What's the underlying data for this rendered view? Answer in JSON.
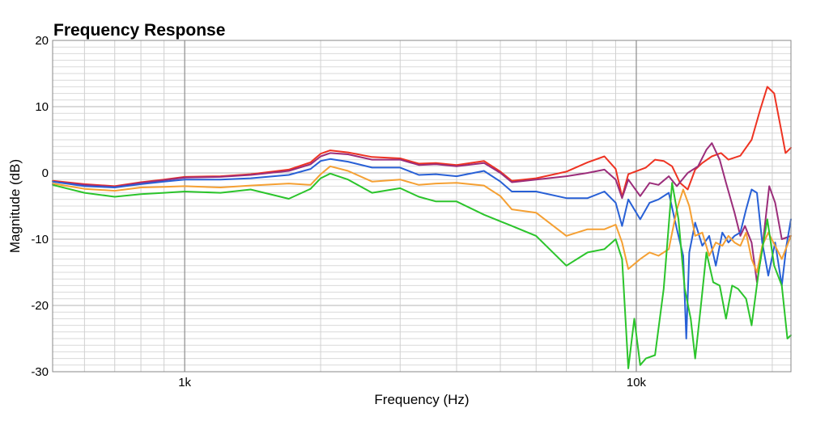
{
  "chart_data": {
    "type": "line",
    "title": "Frequency Response",
    "xlabel": "Frequency (Hz)",
    "ylabel": "Magnitude (dB)",
    "x_scale": "log",
    "xlim": [
      510,
      22000
    ],
    "ylim": [
      -30,
      20
    ],
    "grid": true,
    "x_tick_labels": [
      {
        "value": 1000,
        "label": "1k"
      },
      {
        "value": 10000,
        "label": "10k"
      }
    ],
    "y_tick_labels": [
      {
        "value": 20,
        "label": "20"
      },
      {
        "value": 10,
        "label": "10"
      },
      {
        "value": 0,
        "label": "0"
      },
      {
        "value": -10,
        "label": "-10"
      },
      {
        "value": -20,
        "label": "-20"
      },
      {
        "value": -30,
        "label": "-30"
      }
    ],
    "series": [
      {
        "color": "#ee3322",
        "points": [
          [
            510,
            -1.2
          ],
          [
            600,
            -1.7
          ],
          [
            700,
            -2.0
          ],
          [
            800,
            -1.4
          ],
          [
            900,
            -1.0
          ],
          [
            1000,
            -0.6
          ],
          [
            1200,
            -0.5
          ],
          [
            1400,
            -0.2
          ],
          [
            1700,
            0.5
          ],
          [
            1900,
            1.6
          ],
          [
            2000,
            2.9
          ],
          [
            2100,
            3.4
          ],
          [
            2300,
            3.1
          ],
          [
            2600,
            2.4
          ],
          [
            3000,
            2.2
          ],
          [
            3300,
            1.4
          ],
          [
            3600,
            1.5
          ],
          [
            4000,
            1.2
          ],
          [
            4600,
            1.8
          ],
          [
            5000,
            0.2
          ],
          [
            5300,
            -1.2
          ],
          [
            6000,
            -0.8
          ],
          [
            7000,
            0.2
          ],
          [
            7800,
            1.6
          ],
          [
            8500,
            2.5
          ],
          [
            9000,
            0.6
          ],
          [
            9300,
            -3.6
          ],
          [
            9600,
            -0.2
          ],
          [
            10500,
            0.8
          ],
          [
            11000,
            2.0
          ],
          [
            11500,
            1.8
          ],
          [
            12000,
            1.0
          ],
          [
            12500,
            -1.5
          ],
          [
            13000,
            -2.5
          ],
          [
            13500,
            0.5
          ],
          [
            14000,
            1.5
          ],
          [
            14700,
            2.5
          ],
          [
            15400,
            3.0
          ],
          [
            16000,
            2.0
          ],
          [
            17000,
            2.6
          ],
          [
            18000,
            5.0
          ],
          [
            18800,
            9.5
          ],
          [
            19500,
            13.0
          ],
          [
            20200,
            12.0
          ],
          [
            21000,
            6.0
          ],
          [
            21400,
            3.0
          ],
          [
            22000,
            3.8
          ]
        ]
      },
      {
        "color": "#9b2d7a",
        "points": [
          [
            510,
            -1.3
          ],
          [
            600,
            -1.8
          ],
          [
            700,
            -2.1
          ],
          [
            800,
            -1.5
          ],
          [
            900,
            -1.1
          ],
          [
            1000,
            -0.7
          ],
          [
            1200,
            -0.6
          ],
          [
            1400,
            -0.3
          ],
          [
            1700,
            0.3
          ],
          [
            1900,
            1.3
          ],
          [
            2000,
            2.5
          ],
          [
            2100,
            3.0
          ],
          [
            2300,
            2.8
          ],
          [
            2600,
            2.0
          ],
          [
            3000,
            2.0
          ],
          [
            3300,
            1.2
          ],
          [
            3600,
            1.3
          ],
          [
            4000,
            1.0
          ],
          [
            4600,
            1.5
          ],
          [
            5000,
            0.0
          ],
          [
            5300,
            -1.4
          ],
          [
            6000,
            -1.0
          ],
          [
            7000,
            -0.5
          ],
          [
            7800,
            0.0
          ],
          [
            8500,
            0.5
          ],
          [
            9000,
            -1.0
          ],
          [
            9300,
            -3.8
          ],
          [
            9600,
            -1.0
          ],
          [
            10200,
            -3.5
          ],
          [
            10700,
            -1.5
          ],
          [
            11200,
            -1.8
          ],
          [
            11800,
            -0.5
          ],
          [
            12300,
            -2.0
          ],
          [
            13000,
            0.0
          ],
          [
            13700,
            1.0
          ],
          [
            14300,
            3.5
          ],
          [
            14700,
            4.5
          ],
          [
            15300,
            2.0
          ],
          [
            15800,
            -1.5
          ],
          [
            16500,
            -6.0
          ],
          [
            17000,
            -9.5
          ],
          [
            17400,
            -8.0
          ],
          [
            18000,
            -10.5
          ],
          [
            18500,
            -16.5
          ],
          [
            19000,
            -11.5
          ],
          [
            19700,
            -2.0
          ],
          [
            20300,
            -4.5
          ],
          [
            21000,
            -10.0
          ],
          [
            22000,
            -9.5
          ]
        ]
      },
      {
        "color": "#2860d6",
        "points": [
          [
            510,
            -1.3
          ],
          [
            600,
            -2.0
          ],
          [
            700,
            -2.2
          ],
          [
            800,
            -1.7
          ],
          [
            900,
            -1.3
          ],
          [
            1000,
            -1.0
          ],
          [
            1200,
            -1.0
          ],
          [
            1400,
            -0.8
          ],
          [
            1700,
            -0.3
          ],
          [
            1900,
            0.6
          ],
          [
            2000,
            1.8
          ],
          [
            2100,
            2.1
          ],
          [
            2300,
            1.7
          ],
          [
            2600,
            0.8
          ],
          [
            3000,
            0.8
          ],
          [
            3300,
            -0.3
          ],
          [
            3600,
            -0.2
          ],
          [
            4000,
            -0.5
          ],
          [
            4600,
            0.3
          ],
          [
            5000,
            -1.3
          ],
          [
            5300,
            -2.8
          ],
          [
            6000,
            -2.8
          ],
          [
            7000,
            -3.8
          ],
          [
            7800,
            -3.8
          ],
          [
            8500,
            -2.8
          ],
          [
            9000,
            -4.5
          ],
          [
            9300,
            -8.0
          ],
          [
            9600,
            -4.0
          ],
          [
            10200,
            -7.0
          ],
          [
            10700,
            -4.5
          ],
          [
            11200,
            -4.0
          ],
          [
            11800,
            -3.0
          ],
          [
            12300,
            -8.5
          ],
          [
            12700,
            -12.5
          ],
          [
            12900,
            -25.0
          ],
          [
            13100,
            -12.0
          ],
          [
            13500,
            -7.5
          ],
          [
            14000,
            -11.0
          ],
          [
            14500,
            -9.5
          ],
          [
            15000,
            -14.0
          ],
          [
            15500,
            -9.0
          ],
          [
            16000,
            -10.5
          ],
          [
            16500,
            -9.5
          ],
          [
            17000,
            -9.0
          ],
          [
            17500,
            -5.5
          ],
          [
            18000,
            -2.5
          ],
          [
            18500,
            -3.0
          ],
          [
            19000,
            -10.5
          ],
          [
            19600,
            -15.5
          ],
          [
            20300,
            -10.5
          ],
          [
            21000,
            -17.0
          ],
          [
            21500,
            -11.0
          ],
          [
            22000,
            -7.0
          ]
        ]
      },
      {
        "color": "#f5a033",
        "points": [
          [
            510,
            -1.6
          ],
          [
            600,
            -2.4
          ],
          [
            700,
            -2.7
          ],
          [
            800,
            -2.2
          ],
          [
            900,
            -2.1
          ],
          [
            1000,
            -2.0
          ],
          [
            1200,
            -2.2
          ],
          [
            1400,
            -1.9
          ],
          [
            1700,
            -1.6
          ],
          [
            1900,
            -1.8
          ],
          [
            2000,
            -0.2
          ],
          [
            2100,
            1.0
          ],
          [
            2300,
            0.3
          ],
          [
            2600,
            -1.3
          ],
          [
            3000,
            -1.0
          ],
          [
            3300,
            -1.8
          ],
          [
            3600,
            -1.6
          ],
          [
            4000,
            -1.5
          ],
          [
            4600,
            -1.9
          ],
          [
            5000,
            -3.5
          ],
          [
            5300,
            -5.5
          ],
          [
            6000,
            -6.0
          ],
          [
            7000,
            -9.5
          ],
          [
            7800,
            -8.5
          ],
          [
            8500,
            -8.5
          ],
          [
            9000,
            -7.8
          ],
          [
            9300,
            -10.5
          ],
          [
            9600,
            -14.5
          ],
          [
            10200,
            -13.0
          ],
          [
            10700,
            -12.0
          ],
          [
            11200,
            -12.5
          ],
          [
            11800,
            -11.5
          ],
          [
            12300,
            -5.5
          ],
          [
            12700,
            -2.5
          ],
          [
            13100,
            -5.0
          ],
          [
            13500,
            -9.5
          ],
          [
            14000,
            -9.0
          ],
          [
            14500,
            -12.5
          ],
          [
            15000,
            -10.5
          ],
          [
            15500,
            -11.0
          ],
          [
            16000,
            -9.5
          ],
          [
            16500,
            -10.5
          ],
          [
            17000,
            -11.0
          ],
          [
            17500,
            -9.0
          ],
          [
            18000,
            -13.0
          ],
          [
            18500,
            -15.0
          ],
          [
            19000,
            -11.0
          ],
          [
            19600,
            -9.0
          ],
          [
            20300,
            -11.0
          ],
          [
            21000,
            -13.0
          ],
          [
            22000,
            -9.5
          ]
        ]
      },
      {
        "color": "#2bc42b",
        "points": [
          [
            510,
            -1.8
          ],
          [
            600,
            -3.0
          ],
          [
            700,
            -3.6
          ],
          [
            800,
            -3.2
          ],
          [
            900,
            -3.0
          ],
          [
            1000,
            -2.8
          ],
          [
            1200,
            -3.0
          ],
          [
            1400,
            -2.5
          ],
          [
            1700,
            -3.9
          ],
          [
            1900,
            -2.4
          ],
          [
            2000,
            -0.8
          ],
          [
            2100,
            -0.1
          ],
          [
            2300,
            -1.0
          ],
          [
            2600,
            -3.0
          ],
          [
            3000,
            -2.3
          ],
          [
            3300,
            -3.6
          ],
          [
            3600,
            -4.3
          ],
          [
            4000,
            -4.3
          ],
          [
            4600,
            -6.3
          ],
          [
            5000,
            -7.3
          ],
          [
            5300,
            -8.0
          ],
          [
            6000,
            -9.5
          ],
          [
            7000,
            -14.0
          ],
          [
            7800,
            -12.0
          ],
          [
            8500,
            -11.5
          ],
          [
            9000,
            -10.0
          ],
          [
            9300,
            -13.0
          ],
          [
            9600,
            -29.5
          ],
          [
            9900,
            -22.0
          ],
          [
            10200,
            -29.0
          ],
          [
            10500,
            -28.0
          ],
          [
            11000,
            -27.5
          ],
          [
            11500,
            -17.5
          ],
          [
            12000,
            -1.5
          ],
          [
            12400,
            -7.0
          ],
          [
            12800,
            -17.5
          ],
          [
            13200,
            -22.0
          ],
          [
            13500,
            -28.0
          ],
          [
            13900,
            -20.0
          ],
          [
            14300,
            -12.0
          ],
          [
            14800,
            -16.5
          ],
          [
            15300,
            -17.0
          ],
          [
            15800,
            -22.0
          ],
          [
            16300,
            -17.0
          ],
          [
            16800,
            -17.5
          ],
          [
            17500,
            -19.0
          ],
          [
            18000,
            -23.0
          ],
          [
            18700,
            -14.5
          ],
          [
            19500,
            -7.0
          ],
          [
            20200,
            -14.0
          ],
          [
            21000,
            -17.0
          ],
          [
            21600,
            -25.0
          ],
          [
            22000,
            -24.5
          ]
        ]
      }
    ]
  }
}
